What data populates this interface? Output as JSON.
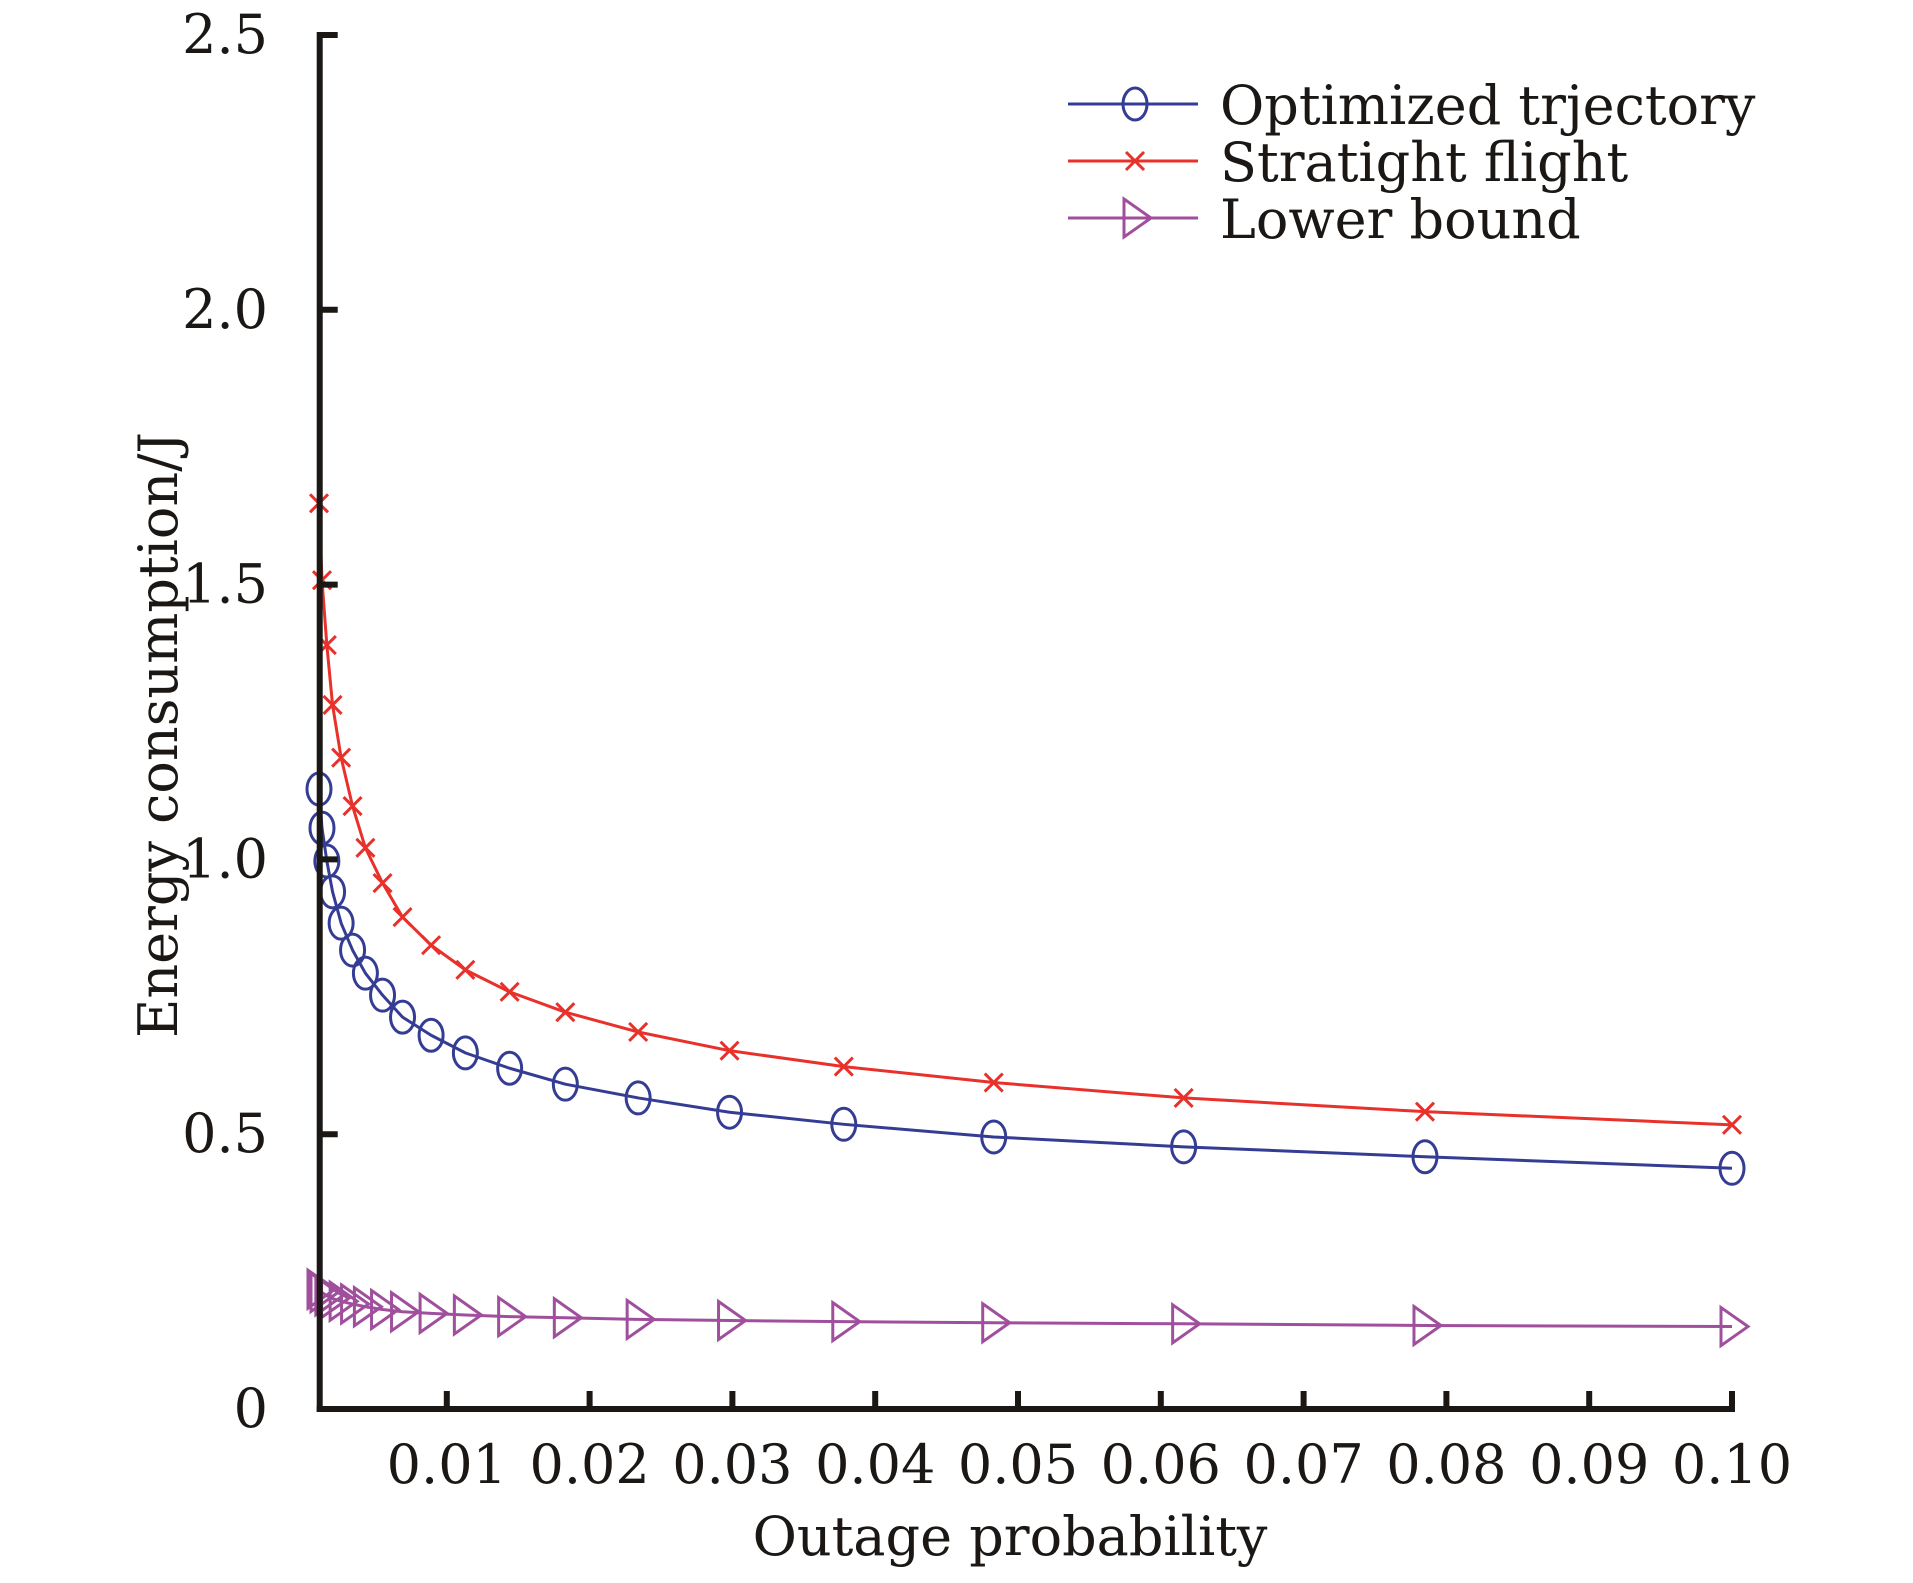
{
  "chart_data": {
    "type": "line",
    "title": "",
    "xlabel": "Outage probability",
    "ylabel": "Energy consumption/J",
    "xlim": [
      0.0011,
      0.1
    ],
    "ylim": [
      0,
      2.5
    ],
    "grid": false,
    "legend_position": "top-right",
    "x_ticks": [
      0.01,
      0.02,
      0.03,
      0.04,
      0.05,
      0.06,
      0.07,
      0.08,
      0.09,
      0.1
    ],
    "x_tick_labels": [
      "0.01",
      "0.02",
      "0.03",
      "0.04",
      "0.05",
      "0.06",
      "0.07",
      "0.08",
      "0.09",
      "0.10"
    ],
    "y_ticks": [
      0,
      0.5,
      1.0,
      1.5,
      2.0,
      2.5
    ],
    "y_tick_labels": [
      "0",
      "0.5",
      "1.0",
      "1.5",
      "2.0",
      "2.5"
    ],
    "x": [
      0.00105,
      0.00126,
      0.0016,
      0.002,
      0.0026,
      0.0034,
      0.0043,
      0.0055,
      0.0069,
      0.0089,
      0.0113,
      0.0144,
      0.0183,
      0.0234,
      0.0298,
      0.0378,
      0.0483,
      0.0616,
      0.0785,
      0.1
    ],
    "series": [
      {
        "name": "Optimized trjectory",
        "color": "#343c94",
        "marker": "circle",
        "values": [
          1.128,
          1.057,
          0.997,
          0.941,
          0.884,
          0.835,
          0.793,
          0.753,
          0.713,
          0.68,
          0.648,
          0.62,
          0.591,
          0.566,
          0.54,
          0.518,
          0.495,
          0.477,
          0.459,
          0.438
        ]
      },
      {
        "name": "Stratight flight",
        "color": "#e8312a",
        "marker": "x",
        "values": [
          1.648,
          1.508,
          1.39,
          1.281,
          1.185,
          1.097,
          1.021,
          0.957,
          0.895,
          0.844,
          0.799,
          0.759,
          0.722,
          0.686,
          0.652,
          0.623,
          0.594,
          0.566,
          0.541,
          0.517
        ]
      },
      {
        "name": "Lower bound",
        "color": "#a04f9c",
        "marker": "triangle-right",
        "values": [
          0.218,
          0.212,
          0.206,
          0.201,
          0.196,
          0.191,
          0.186,
          0.181,
          0.177,
          0.174,
          0.171,
          0.168,
          0.166,
          0.163,
          0.161,
          0.159,
          0.157,
          0.155,
          0.152,
          0.15
        ]
      }
    ]
  }
}
